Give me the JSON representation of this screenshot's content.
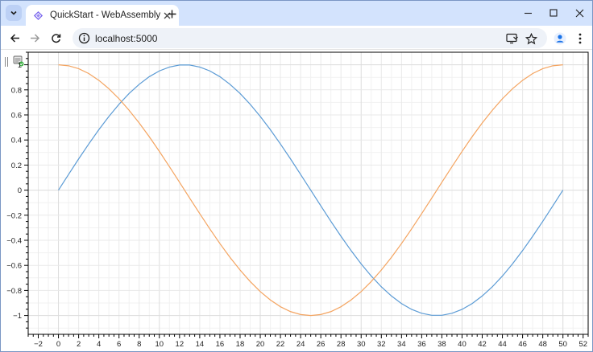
{
  "browser": {
    "tab_title": "QuickStart - WebAssembly",
    "url": "localhost:5000"
  },
  "icons": {
    "tab_search": "chevron-down-icon",
    "tab_favicon": "blazor-icon",
    "tab_close": "close-icon",
    "new_tab": "plus-icon",
    "minimize": "minimize-icon",
    "maximize": "maximize-icon",
    "close_window": "close-icon",
    "back": "arrow-left-icon",
    "forward": "arrow-right-icon",
    "reload": "reload-icon",
    "site_info": "info-icon",
    "cast": "install-app-icon",
    "bookmark": "star-icon",
    "profile": "person-icon",
    "menu": "kebab-menu-icon",
    "plot_drag": "drag-handle-icon",
    "plot_settings": "plot-settings-icon"
  },
  "colors": {
    "series_sin": "#5b9bd5",
    "series_cos": "#f4a460",
    "tabstrip": "#d3e3fd"
  },
  "chart_data": {
    "type": "line",
    "title": "",
    "xlabel": "",
    "ylabel": "",
    "xlim": [
      -3,
      52.5
    ],
    "ylim": [
      -1.15,
      1.1
    ],
    "x_ticks": [
      -2,
      0,
      2,
      4,
      6,
      8,
      10,
      12,
      14,
      16,
      18,
      20,
      22,
      24,
      26,
      28,
      30,
      32,
      34,
      36,
      38,
      40,
      42,
      44,
      46,
      48,
      50,
      52
    ],
    "y_ticks": [
      -1,
      -0.8,
      -0.6,
      -0.4,
      -0.2,
      0,
      0.2,
      0.4,
      0.6,
      0.8,
      1
    ],
    "y_tick_labels": [
      "−1",
      "−0.8",
      "−0.6",
      "−0.4",
      "−0.2",
      "0",
      "0.2",
      "0.4",
      "0.6",
      "0.8",
      "1"
    ],
    "grid": true,
    "series": [
      {
        "color": "#5b9bd5",
        "x": [
          0,
          1,
          2,
          3,
          4,
          5,
          6,
          7,
          8,
          9,
          10,
          11,
          12,
          13,
          14,
          15,
          16,
          17,
          18,
          19,
          20,
          21,
          22,
          23,
          24,
          25,
          26,
          27,
          28,
          29,
          30,
          31,
          32,
          33,
          34,
          35,
          36,
          37,
          38,
          39,
          40,
          41,
          42,
          43,
          44,
          45,
          46,
          47,
          48,
          49,
          50
        ],
        "y": [
          0,
          0.125,
          0.249,
          0.368,
          0.482,
          0.588,
          0.685,
          0.771,
          0.844,
          0.905,
          0.951,
          0.982,
          0.998,
          0.998,
          0.982,
          0.951,
          0.905,
          0.844,
          0.771,
          0.685,
          0.588,
          0.482,
          0.368,
          0.249,
          0.125,
          0,
          -0.125,
          -0.249,
          -0.368,
          -0.482,
          -0.588,
          -0.685,
          -0.771,
          -0.844,
          -0.905,
          -0.951,
          -0.982,
          -0.998,
          -0.998,
          -0.982,
          -0.951,
          -0.905,
          -0.844,
          -0.771,
          -0.685,
          -0.588,
          -0.482,
          -0.368,
          -0.249,
          -0.125,
          0
        ]
      },
      {
        "color": "#f4a460",
        "x": [
          0,
          1,
          2,
          3,
          4,
          5,
          6,
          7,
          8,
          9,
          10,
          11,
          12,
          13,
          14,
          15,
          16,
          17,
          18,
          19,
          20,
          21,
          22,
          23,
          24,
          25,
          26,
          27,
          28,
          29,
          30,
          31,
          32,
          33,
          34,
          35,
          36,
          37,
          38,
          39,
          40,
          41,
          42,
          43,
          44,
          45,
          46,
          47,
          48,
          49,
          50
        ],
        "y": [
          1,
          0.992,
          0.969,
          0.93,
          0.876,
          0.809,
          0.729,
          0.637,
          0.536,
          0.426,
          0.309,
          0.187,
          0.063,
          -0.063,
          -0.187,
          -0.309,
          -0.426,
          -0.536,
          -0.637,
          -0.729,
          -0.809,
          -0.876,
          -0.93,
          -0.969,
          -0.992,
          -1,
          -0.992,
          -0.969,
          -0.93,
          -0.876,
          -0.809,
          -0.729,
          -0.637,
          -0.536,
          -0.426,
          -0.309,
          -0.187,
          -0.063,
          0.063,
          0.187,
          0.309,
          0.426,
          0.536,
          0.637,
          0.729,
          0.809,
          0.876,
          0.93,
          0.969,
          0.992,
          1
        ]
      }
    ]
  }
}
